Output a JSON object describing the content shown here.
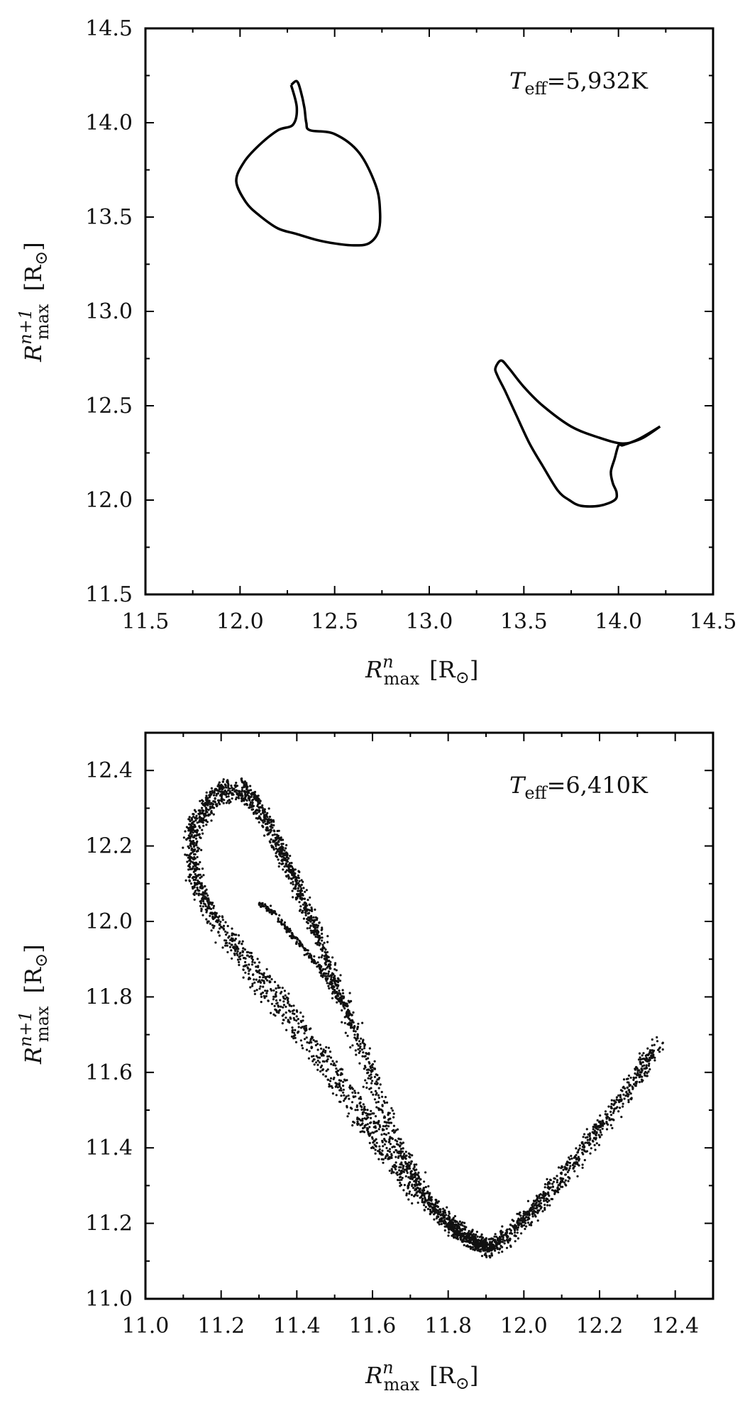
{
  "chart_data": [
    {
      "type": "line",
      "xlabel": {
        "main": "R",
        "sup": "n",
        "sub": "max",
        "unit_open": "[R",
        "unit_sym": "⊙",
        "unit_close": "]"
      },
      "ylabel": {
        "main": "R",
        "sup": "n+1",
        "sub": "max",
        "unit_open": "[R",
        "unit_sym": "⊙",
        "unit_close": "]"
      },
      "xlim": [
        11.5,
        14.5
      ],
      "ylim": [
        11.5,
        14.5
      ],
      "xticks": [
        "11.5",
        "12.0",
        "12.5",
        "13.0",
        "13.5",
        "14.0",
        "14.5"
      ],
      "yticks": [
        "11.5",
        "12.0",
        "12.5",
        "13.0",
        "13.5",
        "14.0",
        "14.5"
      ],
      "annotation": {
        "T": "T",
        "sub": "eff",
        "value": "=5,932K"
      },
      "grid": false,
      "series": [
        {
          "x": [
            12.27,
            12.3,
            12.32,
            12.34,
            12.35,
            12.37,
            12.5,
            12.63,
            12.72,
            12.74,
            12.73,
            12.68,
            12.6,
            12.5,
            12.4,
            12.3,
            12.2,
            12.1,
            12.03,
            11.98,
            12.02,
            12.1,
            12.2,
            12.28,
            12.3,
            12.27
          ],
          "y": [
            14.2,
            14.22,
            14.17,
            14.08,
            14.0,
            13.96,
            13.94,
            13.84,
            13.66,
            13.52,
            13.42,
            13.36,
            13.35,
            13.36,
            13.38,
            13.41,
            13.44,
            13.51,
            13.58,
            13.69,
            13.79,
            13.88,
            13.96,
            13.99,
            14.08,
            14.2
          ]
        },
        {
          "x": [
            14.22,
            14.13,
            14.05,
            14.02,
            14.0,
            13.98,
            13.96,
            13.97,
            13.99,
            13.98,
            13.9,
            13.8,
            13.74,
            13.68,
            13.6,
            13.53,
            13.46,
            13.4,
            13.36,
            13.35,
            13.38,
            13.42,
            13.5,
            13.6,
            13.75,
            13.9,
            14.02,
            14.1,
            14.22
          ],
          "y": [
            12.39,
            12.33,
            12.3,
            12.29,
            12.29,
            12.22,
            12.15,
            12.09,
            12.04,
            12.0,
            11.97,
            11.97,
            12.0,
            12.05,
            12.18,
            12.3,
            12.45,
            12.58,
            12.66,
            12.7,
            12.74,
            12.7,
            12.6,
            12.5,
            12.39,
            12.33,
            12.3,
            12.32,
            12.39
          ]
        }
      ]
    },
    {
      "type": "scatter",
      "xlabel": {
        "main": "R",
        "sup": "n",
        "sub": "max",
        "unit_open": "[R",
        "unit_sym": "⊙",
        "unit_close": "]"
      },
      "ylabel": {
        "main": "R",
        "sup": "n+1",
        "sub": "max",
        "unit_open": "[R",
        "unit_sym": "⊙",
        "unit_close": "]"
      },
      "xlim": [
        11.0,
        12.5
      ],
      "ylim": [
        11.0,
        12.5
      ],
      "xticks": [
        "11.0",
        "11.2",
        "11.4",
        "11.6",
        "11.8",
        "12.0",
        "12.2",
        "12.4"
      ],
      "yticks": [
        "11.0",
        "11.2",
        "11.4",
        "11.6",
        "11.8",
        "12.0",
        "12.2",
        "12.4"
      ],
      "annotation": {
        "T": "T",
        "sub": "eff",
        "value": "=6,410K"
      },
      "grid": false,
      "point_size": 1.6,
      "bands": [
        {
          "x": [
            11.25,
            11.18,
            11.13,
            11.12,
            11.16,
            11.25,
            11.35,
            11.45,
            11.55,
            11.62,
            11.7,
            11.8,
            11.88,
            11.92,
            11.97,
            12.03,
            12.1,
            12.2,
            12.3,
            12.36
          ],
          "y": [
            12.35,
            12.32,
            12.25,
            12.15,
            12.03,
            11.9,
            11.77,
            11.64,
            11.5,
            11.4,
            11.3,
            11.2,
            11.14,
            11.13,
            11.18,
            11.24,
            11.32,
            11.45,
            11.58,
            11.69
          ],
          "width": 0.035,
          "count": 1600
        },
        {
          "x": [
            11.22,
            11.16,
            11.12,
            11.13,
            11.18,
            11.28,
            11.38,
            11.5,
            11.6,
            11.7,
            11.8,
            11.86,
            11.9,
            11.96,
            12.04,
            12.14,
            12.24,
            12.34
          ],
          "y": [
            12.37,
            12.33,
            12.25,
            12.12,
            12.02,
            11.9,
            11.78,
            11.62,
            11.48,
            11.33,
            11.2,
            11.15,
            11.14,
            11.17,
            11.26,
            11.38,
            11.52,
            11.66
          ],
          "width": 0.02,
          "count": 900
        },
        {
          "x": [
            11.25,
            11.31,
            11.36,
            11.42,
            11.48,
            11.55,
            11.62,
            11.7,
            11.78,
            11.85,
            11.9
          ],
          "y": [
            12.35,
            12.28,
            12.18,
            12.05,
            11.9,
            11.72,
            11.52,
            11.35,
            11.22,
            11.16,
            11.14
          ],
          "width": 0.03,
          "count": 1100
        },
        {
          "x": [
            11.3,
            11.34,
            11.4,
            11.46,
            11.52
          ],
          "y": [
            12.05,
            12.02,
            11.95,
            11.88,
            11.78
          ],
          "width": 0.012,
          "count": 220
        },
        {
          "x": [
            11.25,
            11.3,
            11.35,
            11.4,
            11.45,
            11.5,
            11.55
          ],
          "y": [
            12.38,
            12.32,
            12.22,
            12.1,
            11.98,
            11.84,
            11.72
          ],
          "width": 0.01,
          "count": 260
        }
      ]
    }
  ]
}
